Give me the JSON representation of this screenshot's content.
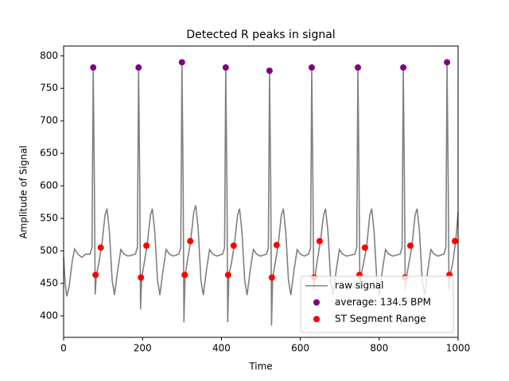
{
  "chart_data": {
    "type": "line",
    "title": "Detected R peaks in signal",
    "x_label": "Time",
    "y_label": "Amplitude of Signal",
    "xlim": [
      0,
      1000
    ],
    "xticks": [
      0,
      200,
      400,
      600,
      800,
      1000
    ],
    "ylim": [
      367,
      815
    ],
    "yticks": [
      400,
      450,
      500,
      550,
      600,
      650,
      700,
      750,
      800
    ],
    "legend": "lower right",
    "series": [
      {
        "name": "raw signal",
        "type": "line",
        "color": "#808080",
        "x": [
          0,
          4,
          8,
          14,
          22,
          28,
          36,
          46,
          56,
          67,
          72,
          75,
          78,
          80,
          83,
          89,
          97,
          105,
          110,
          116,
          123,
          129,
          137,
          145,
          153,
          163,
          182,
          187,
          190,
          193,
          195,
          198,
          204,
          212,
          220,
          225,
          231,
          238,
          244,
          252,
          260,
          268,
          278,
          292,
          297,
          300,
          303,
          305,
          308,
          314,
          322,
          330,
          335,
          341,
          348,
          354,
          362,
          370,
          378,
          388,
          403,
          408,
          411,
          414,
          416,
          419,
          425,
          433,
          441,
          446,
          452,
          459,
          465,
          473,
          481,
          489,
          499,
          514,
          519,
          522,
          525,
          527,
          530,
          536,
          544,
          552,
          557,
          563,
          570,
          576,
          584,
          592,
          600,
          610,
          621,
          626,
          629,
          632,
          634,
          637,
          643,
          651,
          659,
          664,
          670,
          677,
          683,
          691,
          699,
          707,
          717,
          738,
          743,
          746,
          749,
          751,
          754,
          760,
          768,
          776,
          781,
          787,
          794,
          800,
          808,
          816,
          824,
          834,
          853,
          858,
          861,
          864,
          866,
          869,
          875,
          883,
          891,
          896,
          902,
          909,
          915,
          923,
          931,
          939,
          949,
          964,
          969,
          972,
          975,
          977,
          980,
          986,
          994,
          1000
        ],
        "values": [
          490,
          450,
          430,
          445,
          485,
          503,
          495,
          490,
          495,
          495,
          505,
          782,
          600,
          433,
          463,
          480,
          510,
          555,
          565,
          530,
          455,
          432,
          470,
          502,
          495,
          492,
          495,
          505,
          782,
          600,
          410,
          459,
          480,
          510,
          555,
          565,
          530,
          455,
          432,
          470,
          502,
          495,
          492,
          495,
          505,
          790,
          600,
          390,
          463,
          485,
          515,
          560,
          570,
          535,
          455,
          432,
          470,
          502,
          495,
          492,
          495,
          505,
          782,
          600,
          390,
          463,
          480,
          510,
          555,
          565,
          530,
          455,
          432,
          470,
          502,
          495,
          492,
          495,
          505,
          777,
          600,
          385,
          459,
          480,
          510,
          555,
          565,
          530,
          455,
          432,
          470,
          502,
          495,
          492,
          495,
          505,
          782,
          600,
          440,
          459,
          485,
          515,
          555,
          565,
          530,
          455,
          432,
          470,
          502,
          495,
          492,
          495,
          505,
          782,
          600,
          440,
          463,
          480,
          505,
          555,
          565,
          530,
          455,
          432,
          470,
          502,
          495,
          492,
          495,
          505,
          782,
          600,
          440,
          459,
          480,
          508,
          555,
          565,
          530,
          455,
          432,
          470,
          502,
          495,
          492,
          495,
          505,
          790,
          600,
          440,
          463,
          480,
          515,
          560
        ]
      },
      {
        "name": "average: 134.5 BPM",
        "type": "scatter",
        "color": "#800080",
        "x": [
          75,
          190,
          300,
          411,
          522,
          629,
          746,
          861,
          972
        ],
        "values": [
          782,
          782,
          790,
          782,
          777,
          782,
          782,
          782,
          790
        ]
      },
      {
        "name": "ST Segment Range",
        "type": "scatter",
        "color": "#ff0000",
        "x": [
          81,
          94,
          196,
          210,
          307,
          321,
          417,
          431,
          528,
          540,
          635,
          649,
          750,
          764,
          865,
          879,
          978,
          992
        ],
        "values": [
          463,
          505,
          459,
          508,
          463,
          515,
          463,
          508,
          459,
          509,
          459,
          515,
          463,
          505,
          459,
          508,
          463,
          515
        ]
      }
    ]
  }
}
